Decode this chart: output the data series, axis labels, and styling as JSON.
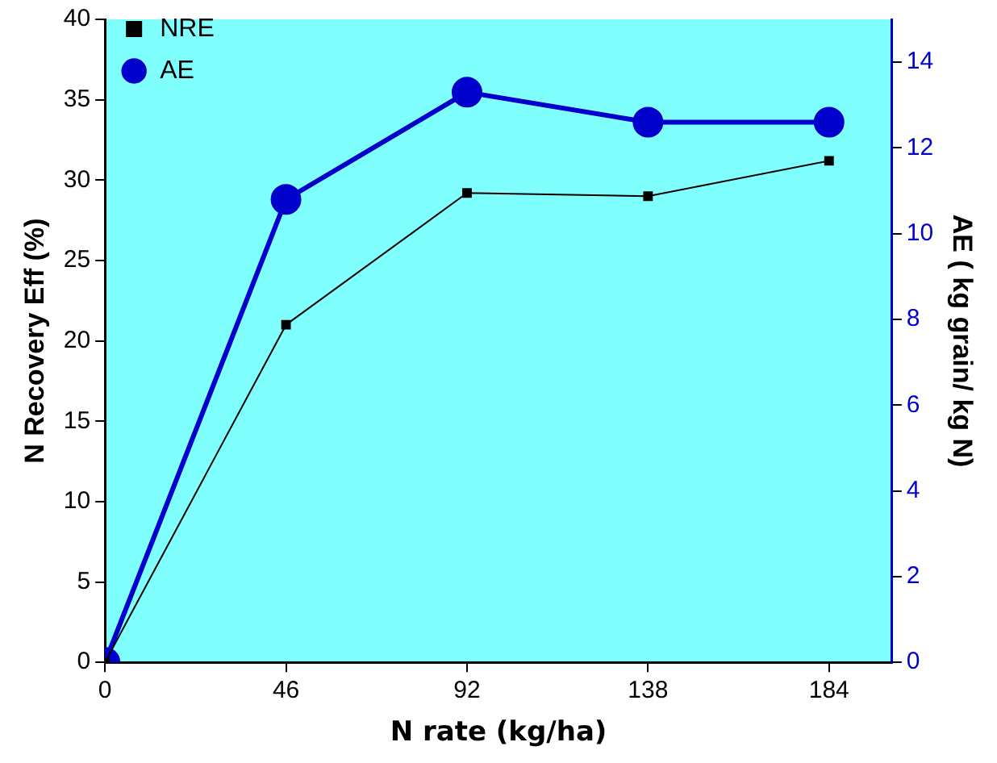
{
  "chart_data": {
    "type": "line",
    "xlabel": "N rate (kg/ha)",
    "ylabel": "N Recovery Eff (%)",
    "y2label": "AE ( kg grain/ kg N)",
    "x": [
      0,
      46,
      92,
      138,
      184
    ],
    "xlim": [
      0,
      200
    ],
    "xticks": [
      0,
      46,
      92,
      138,
      184
    ],
    "ylim": [
      0,
      40
    ],
    "yticks": [
      0,
      5,
      10,
      15,
      20,
      25,
      30,
      35,
      40
    ],
    "y2lim": [
      0,
      15
    ],
    "y2ticks": [
      0,
      2,
      4,
      6,
      8,
      10,
      12,
      14
    ],
    "grid": false,
    "legend": "top left",
    "line_style": "solid",
    "series": [
      {
        "name": "NRE",
        "color": "#000000",
        "marker": "square",
        "values": [
          0,
          21,
          29.2,
          29,
          31.2
        ]
      },
      {
        "name": "AE",
        "color": "#0000cc",
        "marker": "circle",
        "axis": "y2",
        "values": [
          0,
          10.8,
          13.3,
          12.6,
          12.6
        ]
      }
    ]
  }
}
